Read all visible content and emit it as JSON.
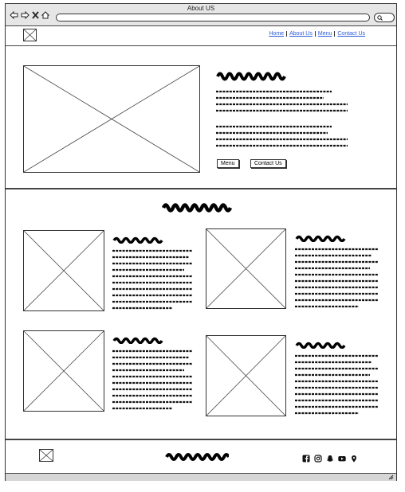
{
  "window": {
    "title": "About US"
  },
  "browser": {
    "back_icon": "back-arrow-icon",
    "forward_icon": "forward-arrow-icon",
    "close_icon": "close-x-icon",
    "home_icon": "home-icon",
    "search_icon": "search-icon"
  },
  "header": {
    "logo_icon": "image-placeholder-icon",
    "nav": [
      "Home",
      "About Us",
      "Menu",
      "Contact Us"
    ]
  },
  "hero": {
    "buttons": {
      "menu": "Menu",
      "contact": "Contact Us"
    }
  },
  "footer": {
    "logo_icon": "image-placeholder-icon",
    "social_icons": [
      "facebook-icon",
      "instagram-icon",
      "snapchat-icon",
      "youtube-icon",
      "location-pin-icon"
    ]
  }
}
